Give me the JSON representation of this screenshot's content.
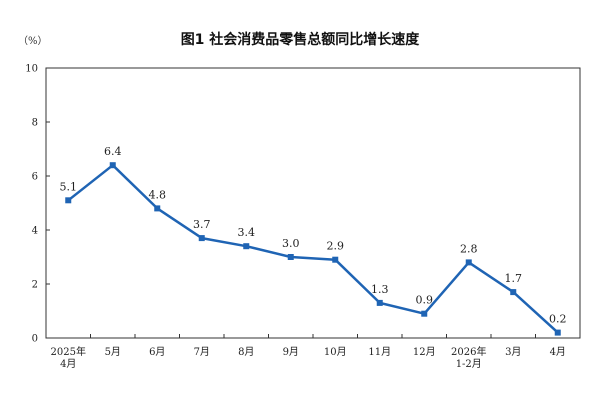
{
  "chart_data": {
    "type": "line",
    "title": "图1 社会消费品零售总额同比增长速度",
    "unit_label": "（%）",
    "categories": [
      [
        "2025年",
        "4月"
      ],
      [
        "5月"
      ],
      [
        "6月"
      ],
      [
        "7月"
      ],
      [
        "8月"
      ],
      [
        "9月"
      ],
      [
        "10月"
      ],
      [
        "11月"
      ],
      [
        "12月"
      ],
      [
        "2026年",
        "1-2月"
      ],
      [
        "3月"
      ],
      [
        "4月"
      ]
    ],
    "values": [
      5.1,
      6.4,
      4.8,
      3.7,
      3.4,
      3.0,
      2.9,
      1.3,
      0.9,
      2.8,
      1.7,
      0.2
    ],
    "value_labels": [
      "5.1",
      "6.4",
      "4.8",
      "3.7",
      "3.4",
      "3.0",
      "2.9",
      "1.3",
      "0.9",
      "2.8",
      "1.7",
      "0.2"
    ],
    "yticks": [
      "0",
      "2",
      "4",
      "6",
      "8",
      "10"
    ],
    "ylim": [
      0,
      10
    ],
    "grid": false,
    "legend": "none",
    "line_color": "#1f64b4",
    "axis_color": "#333333"
  }
}
